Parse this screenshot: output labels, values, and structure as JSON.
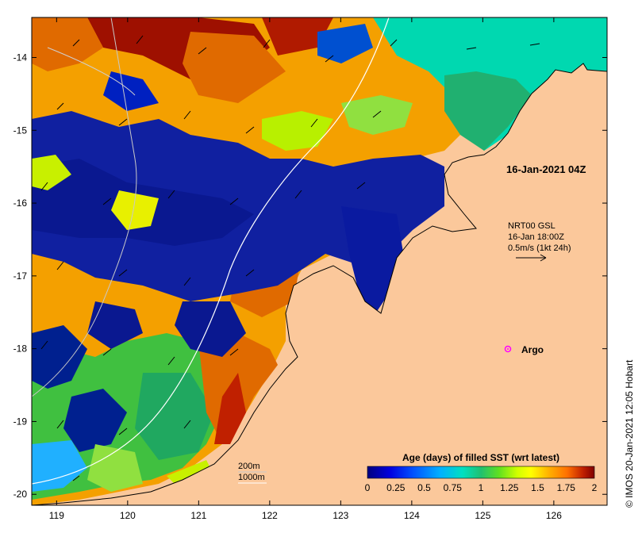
{
  "map": {
    "lon_ticks": [
      "119",
      "120",
      "121",
      "122",
      "123",
      "124",
      "125",
      "126"
    ],
    "lat_ticks": [
      "-14",
      "-15",
      "-16",
      "-17",
      "-18",
      "-19",
      "-20"
    ],
    "lon_range": [
      118.65,
      126.75
    ],
    "lat_range": [
      -20.15,
      -13.45
    ],
    "land_color": "#fbc89b",
    "background_color": "#ffffff"
  },
  "annotations": {
    "date_label": "16-Jan-2021 04Z",
    "current_line1": "NRT00 GSL",
    "current_line2": "16-Jan 18:00Z",
    "current_line3": "0.5m/s (1kt 24h)",
    "argo_label": "Argo",
    "argo_color": "#ff00ff",
    "contour_200": "200m",
    "contour_1000": "1000m",
    "credit": "© IMOS 20-Jan-2021 12:05 Hobart"
  },
  "colorbar": {
    "title": "Age (days) of filled SST (wrt latest)",
    "tick_labels": [
      "0",
      "0.25",
      "0.5",
      "0.75",
      "1",
      "1.25",
      "1.5",
      "1.75",
      "2"
    ],
    "range": [
      0,
      2
    ],
    "colors": [
      "#00007f",
      "#0000d0",
      "#0040ff",
      "#00a0ff",
      "#00e0d0",
      "#20c0a0",
      "#40e040",
      "#c0ff00",
      "#ffff00",
      "#ffc000",
      "#ff8000",
      "#e06000",
      "#c02000",
      "#800000"
    ]
  }
}
